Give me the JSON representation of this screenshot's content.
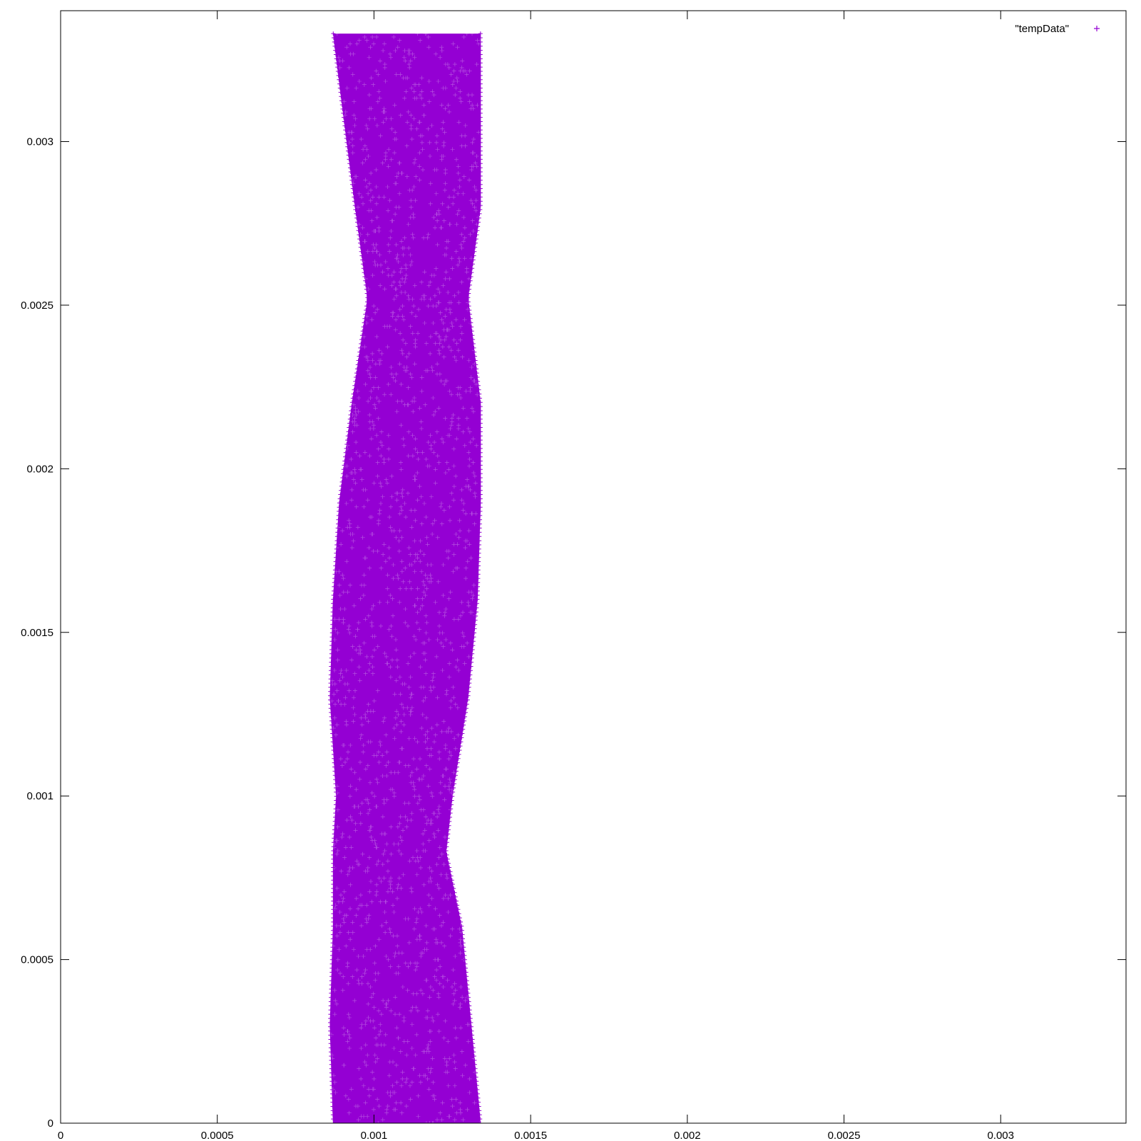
{
  "chart_data": {
    "type": "scatter",
    "title": "",
    "xlabel": "",
    "ylabel": "",
    "xlim": [
      0,
      0.0034
    ],
    "ylim": [
      0,
      0.0034
    ],
    "x_ticks": [
      "0",
      "0.0005",
      "0.001",
      "0.0015",
      "0.002",
      "0.0025",
      "0.003"
    ],
    "y_ticks": [
      "0",
      "0.0005",
      "0.001",
      "0.0015",
      "0.002",
      "0.0025",
      "0.003"
    ],
    "grid": false,
    "legend_position": "top-right",
    "marker": "+",
    "color": "#9400d3",
    "series": [
      {
        "name": "\"tempData\"",
        "band_profile": [
          {
            "y": 0.0,
            "x_min": 0.00087,
            "x_max": 0.00134
          },
          {
            "y": 0.0003,
            "x_min": 0.00086,
            "x_max": 0.00131
          },
          {
            "y": 0.0006,
            "x_min": 0.00087,
            "x_max": 0.00128
          },
          {
            "y": 0.00083,
            "x_min": 0.00087,
            "x_max": 0.00123
          },
          {
            "y": 0.001,
            "x_min": 0.00088,
            "x_max": 0.00125
          },
          {
            "y": 0.0013,
            "x_min": 0.00086,
            "x_max": 0.0013
          },
          {
            "y": 0.0016,
            "x_min": 0.00087,
            "x_max": 0.00133
          },
          {
            "y": 0.0019,
            "x_min": 0.00089,
            "x_max": 0.00134
          },
          {
            "y": 0.0022,
            "x_min": 0.00093,
            "x_max": 0.00134
          },
          {
            "y": 0.00252,
            "x_min": 0.00098,
            "x_max": 0.0013
          },
          {
            "y": 0.0028,
            "x_min": 0.00094,
            "x_max": 0.00134
          },
          {
            "y": 0.0031,
            "x_min": 0.0009,
            "x_max": 0.00134
          },
          {
            "y": 0.00333,
            "x_min": 0.00087,
            "x_max": 0.00134
          }
        ]
      }
    ]
  }
}
